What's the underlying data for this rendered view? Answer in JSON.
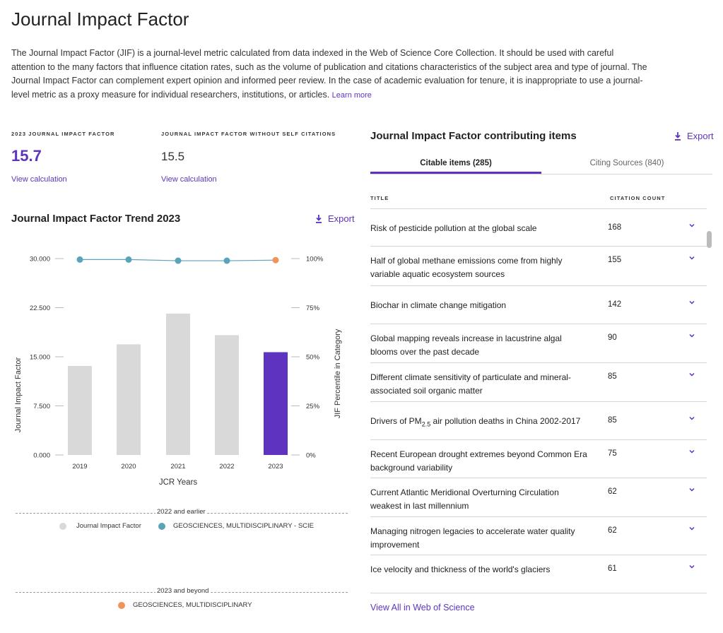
{
  "page": {
    "title": "Journal Impact Factor",
    "description": "The Journal Impact Factor (JIF) is a journal-level metric calculated from data indexed in the Web of Science Core Collection. It should be used with careful attention to the many factors that influence citation rates, such as the volume of publication and citations characteristics of the subject area and type of journal. The Journal Impact Factor can complement expert opinion and informed peer review. In the case of academic evaluation for tenure, it is inappropriate to use a journal-level metric as a proxy measure for individual researchers, institutions, or articles.",
    "learn_more": "Learn more"
  },
  "metrics": {
    "jif_label": "2023 JOURNAL IMPACT FACTOR",
    "jif_value": "15.7",
    "jif_link": "View calculation",
    "jif_wo_label": "JOURNAL IMPACT FACTOR WITHOUT SELF CITATIONS",
    "jif_wo_value": "15.5",
    "jif_wo_link": "View calculation"
  },
  "trend": {
    "title": "Journal Impact Factor Trend 2023",
    "export_label": "Export"
  },
  "chart_data": {
    "type": "bar",
    "categories": [
      "2019",
      "2020",
      "2021",
      "2022",
      "2023"
    ],
    "series": [
      {
        "name": "Journal Impact Factor",
        "values": [
          13.6,
          16.9,
          21.6,
          18.3,
          15.7
        ],
        "axis": "left",
        "type": "bar"
      },
      {
        "name": "GEOSCIENCES, MULTIDISCIPLINARY - SCIE",
        "values": [
          99.5,
          99.5,
          98.9,
          98.9
        ],
        "axis": "right",
        "type": "line",
        "x": [
          "2019",
          "2020",
          "2021",
          "2022"
        ]
      },
      {
        "name": "GEOSCIENCES, MULTIDISCIPLINARY",
        "values": [
          99.2
        ],
        "axis": "right",
        "type": "point",
        "x": [
          "2023"
        ]
      }
    ],
    "xlabel": "JCR Years",
    "ylabel": "Journal Impact Factor",
    "y2label": "JIF Percentile in Category",
    "ylim": [
      0,
      30
    ],
    "y_ticks": [
      "0.000",
      "7.500",
      "15.000",
      "22.500",
      "30.000"
    ],
    "y2lim": [
      0,
      100
    ],
    "y2_ticks": [
      "0%",
      "25%",
      "50%",
      "75%",
      "100%"
    ],
    "grid": false,
    "legend": {
      "group1_label": "2022 and earlier",
      "group1_items": [
        "Journal Impact Factor",
        "GEOSCIENCES, MULTIDISCIPLINARY - SCIE"
      ],
      "group2_label": "2023 and beyond",
      "group2_items": [
        "GEOSCIENCES, MULTIDISCIPLINARY"
      ]
    },
    "colors": {
      "bar": "#d9d9d9",
      "bar_current": "#5e33bf",
      "line": "#5aa3b8",
      "current_point": "#f0955a"
    }
  },
  "contrib": {
    "title": "Journal Impact Factor contributing items",
    "export_label": "Export",
    "tabs": [
      {
        "label": "Citable items (285)",
        "active": true
      },
      {
        "label": "Citing Sources (840)",
        "active": false
      }
    ],
    "col_title": "TITLE",
    "col_count": "CITATION COUNT",
    "rows": [
      {
        "title": "Risk of pesticide pollution at the global scale",
        "count": "168"
      },
      {
        "title": "Half of global methane emissions come from highly variable aquatic ecosystem sources",
        "count": "155"
      },
      {
        "title": "Biochar in climate change mitigation",
        "count": "142"
      },
      {
        "title": "Global mapping reveals increase in lacustrine algal blooms over the past decade",
        "count": "90"
      },
      {
        "title": "Different climate sensitivity of particulate and mineral-associated soil organic matter",
        "count": "85"
      },
      {
        "title_pre": "Drivers of PM",
        "title_sub": "2.5",
        "title_post": " air pollution deaths in China 2002-2017",
        "count": "85"
      },
      {
        "title": "Recent European drought extremes beyond Common Era background variability",
        "count": "75"
      },
      {
        "title": "Current Atlantic Meridional Overturning Circulation weakest in last millennium",
        "count": "62"
      },
      {
        "title": "Managing nitrogen legacies to accelerate water quality improvement",
        "count": "62"
      },
      {
        "title": "Ice velocity and thickness of the world's glaciers",
        "count": "61"
      }
    ],
    "view_all": "View All in Web of Science"
  },
  "colors": {
    "accent": "#5e33bf",
    "divider": "#d6d6d6"
  },
  "icons": {
    "download": "download-icon",
    "chevron": "chevron-down-icon"
  }
}
